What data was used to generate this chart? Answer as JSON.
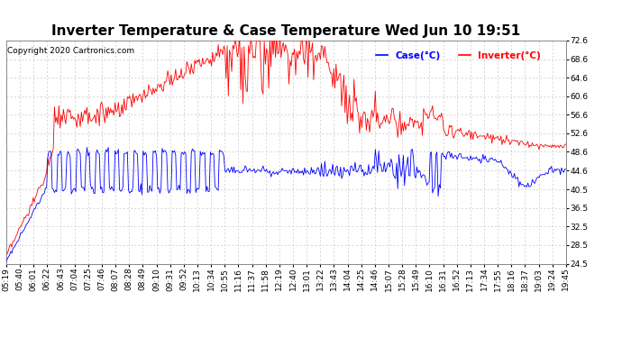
{
  "title": "Inverter Temperature & Case Temperature Wed Jun 10 19:51",
  "copyright": "Copyright 2020 Cartronics.com",
  "legend_labels": [
    "Case(°C)",
    "Inverter(°C)"
  ],
  "legend_colors": [
    "blue",
    "red"
  ],
  "case_color": "blue",
  "inverter_color": "red",
  "ylim": [
    24.5,
    72.6
  ],
  "yticks": [
    24.5,
    28.5,
    32.5,
    36.5,
    40.5,
    44.6,
    48.6,
    52.6,
    56.6,
    60.6,
    64.6,
    68.6,
    72.6
  ],
  "background_color": "#ffffff",
  "grid_color": "#c8c8c8",
  "title_fontsize": 11,
  "axis_fontsize": 6.5,
  "x_tick_labels": [
    "05:19",
    "05:40",
    "06:01",
    "06:22",
    "06:43",
    "07:04",
    "07:25",
    "07:46",
    "08:07",
    "08:28",
    "08:49",
    "09:10",
    "09:31",
    "09:52",
    "10:13",
    "10:34",
    "10:55",
    "11:16",
    "11:37",
    "11:58",
    "12:19",
    "12:40",
    "13:01",
    "13:22",
    "13:43",
    "14:04",
    "14:25",
    "14:46",
    "15:07",
    "15:28",
    "15:49",
    "16:10",
    "16:31",
    "16:52",
    "17:13",
    "17:34",
    "17:55",
    "18:16",
    "18:37",
    "19:03",
    "19:24",
    "19:45"
  ]
}
